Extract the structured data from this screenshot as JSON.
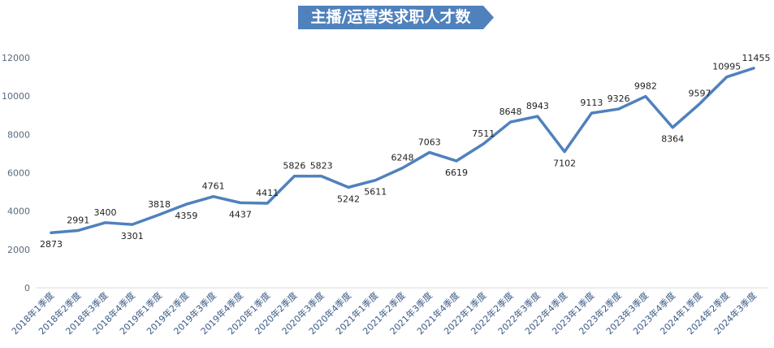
{
  "chart_data": {
    "type": "line",
    "title": "主播/运营类求职人才数",
    "xlabel": "",
    "ylabel": "",
    "ylim": [
      0,
      12000
    ],
    "yticks": [
      0,
      2000,
      4000,
      6000,
      8000,
      10000,
      12000
    ],
    "grid": false,
    "legend": "none",
    "categories": [
      "2018年1季度",
      "2018年2季度",
      "2018年3季度",
      "2018年4季度",
      "2019年1季度",
      "2019年2季度",
      "2019年3季度",
      "2019年4季度",
      "2020年1季度",
      "2020年2季度",
      "2020年3季度",
      "2020年4季度",
      "2021年1季度",
      "2021年2季度",
      "2021年3季度",
      "2021年4季度",
      "2022年1季度",
      "2022年2季度",
      "2022年3季度",
      "2022年4季度",
      "2023年1季度",
      "2023年2季度",
      "2023年3季度",
      "2023年4季度",
      "2024年1季度",
      "2024年2季度",
      "2024年3季度"
    ],
    "values": [
      2873,
      2991,
      3400,
      3301,
      3818,
      4359,
      4761,
      4437,
      4411,
      5826,
      5823,
      5242,
      5611,
      6248,
      7063,
      6619,
      7511,
      8648,
      8943,
      7102,
      9113,
      9326,
      9982,
      8364,
      9597,
      10995,
      11455
    ],
    "colors": {
      "line": "#4f81bd",
      "banner": "#4f81bd"
    }
  }
}
